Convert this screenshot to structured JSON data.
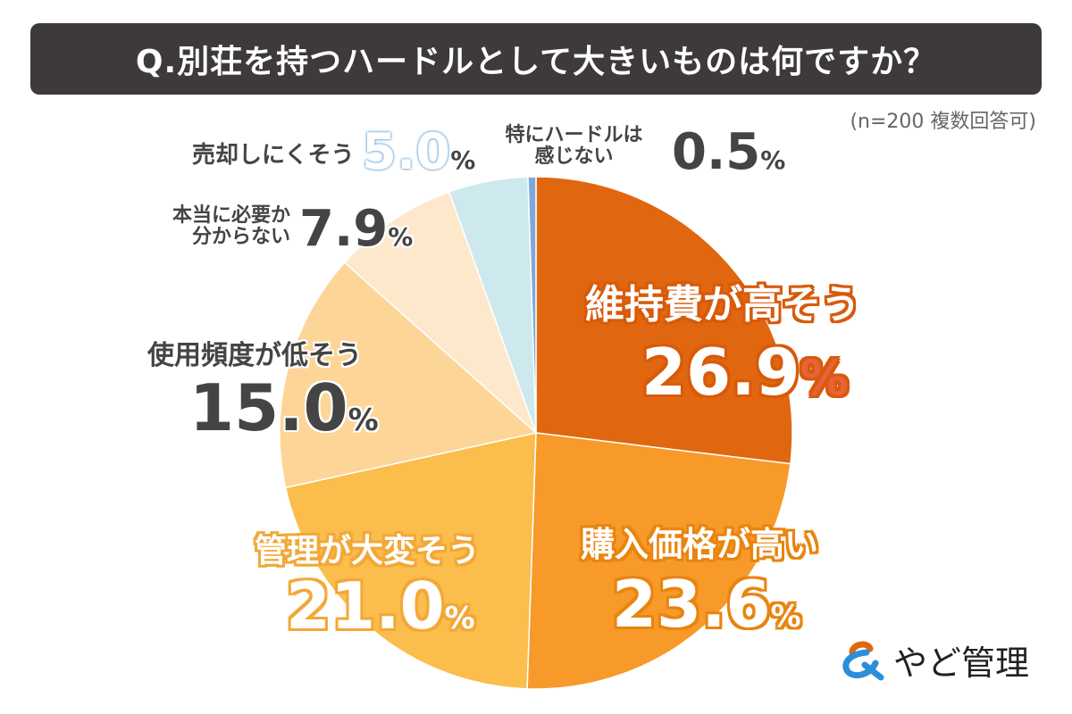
{
  "title": "Q.別荘を持つハードルとして大きいものは何ですか？",
  "note": "(n=200 複数回答可)",
  "logo": "やど管理",
  "chart_data": {
    "type": "pie",
    "title": "Q.別荘を持つハードルとして大きいものは何ですか？",
    "categories": [
      "維持費が高そう",
      "購入価格が高い",
      "管理が大変そう",
      "使用頻度が低そう",
      "本当に必要か分からない",
      "売却しにくそう",
      "特にハードルは感じない"
    ],
    "values": [
      26.9,
      23.6,
      21.0,
      15.0,
      7.9,
      5.0,
      0.5
    ],
    "labels": [
      "26.9",
      "23.6",
      "21.0",
      "15.0",
      "7.9",
      "5.0",
      "0.5"
    ],
    "unit": "%",
    "colors": [
      "#e0670f",
      "#f79a2a",
      "#fbbd4c",
      "#fdd597",
      "#fde8cc",
      "#cde9ee",
      "#7fa8d8"
    ]
  }
}
